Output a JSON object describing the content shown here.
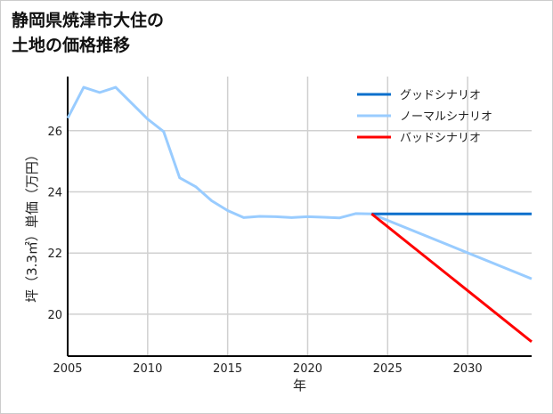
{
  "chart_data": {
    "type": "line",
    "title_lines": [
      "静岡県焼津市大住の",
      "土地の価格推移"
    ],
    "xlabel": "年",
    "ylabel": "坪（3.3㎡）単価（万円）",
    "xlim": [
      2005,
      2034
    ],
    "ylim": [
      18.63,
      27.77
    ],
    "xticks": [
      2005,
      2010,
      2015,
      2020,
      2025,
      2030
    ],
    "yticks": [
      20,
      22,
      24,
      26
    ],
    "grid": true,
    "legend_position": "top-right",
    "series": [
      {
        "name": "グッドシナリオ",
        "color": "#0a6fcc",
        "x": [
          2024,
          2034
        ],
        "y": [
          23.28,
          23.28
        ]
      },
      {
        "name": "ノーマルシナリオ",
        "color": "#99ccff",
        "x": [
          2005,
          2006,
          2007,
          2008,
          2009,
          2010,
          2011,
          2012,
          2013,
          2014,
          2015,
          2016,
          2017,
          2018,
          2019,
          2020,
          2021,
          2022,
          2023,
          2024,
          2034
        ],
        "y": [
          26.41,
          27.42,
          27.25,
          27.42,
          26.9,
          26.38,
          25.97,
          24.46,
          24.17,
          23.71,
          23.39,
          23.16,
          23.2,
          23.19,
          23.16,
          23.19,
          23.17,
          23.15,
          23.29,
          23.28,
          21.16
        ]
      },
      {
        "name": "バッドシナリオ",
        "color": "#ff0000",
        "x": [
          2024,
          2034
        ],
        "y": [
          23.28,
          19.1
        ]
      }
    ]
  }
}
